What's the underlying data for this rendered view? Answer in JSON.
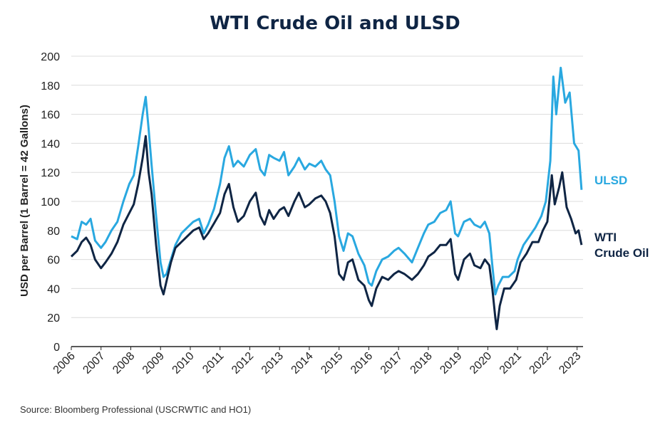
{
  "chart_data": {
    "type": "line",
    "title": "WTI Crude Oil and ULSD",
    "ylabel": "USD per Barrel (1 Barrel = 42 Gallons)",
    "xlabel": "",
    "ylim": [
      0,
      200
    ],
    "yticks": [
      0,
      20,
      40,
      60,
      80,
      100,
      120,
      140,
      160,
      180,
      200
    ],
    "xlim": [
      2006.0,
      2023.2
    ],
    "xticks": [
      "2006",
      "2007",
      "2008",
      "2009",
      "2010",
      "2011",
      "2012",
      "2013",
      "2014",
      "2015",
      "2016",
      "2017",
      "2018",
      "2019",
      "2020",
      "2021",
      "2022",
      "2023"
    ],
    "grid": "horizontal",
    "legend": "right",
    "series": [
      {
        "name": "ULSD",
        "color": "#29a8e0",
        "points": [
          [
            2006.0,
            76
          ],
          [
            2006.2,
            74
          ],
          [
            2006.35,
            86
          ],
          [
            2006.5,
            84
          ],
          [
            2006.65,
            88
          ],
          [
            2006.8,
            73
          ],
          [
            2007.0,
            68
          ],
          [
            2007.15,
            72
          ],
          [
            2007.35,
            80
          ],
          [
            2007.55,
            86
          ],
          [
            2007.75,
            100
          ],
          [
            2007.95,
            112
          ],
          [
            2008.1,
            118
          ],
          [
            2008.25,
            138
          ],
          [
            2008.4,
            160
          ],
          [
            2008.5,
            172
          ],
          [
            2008.6,
            150
          ],
          [
            2008.7,
            125
          ],
          [
            2008.85,
            90
          ],
          [
            2009.0,
            58
          ],
          [
            2009.1,
            48
          ],
          [
            2009.2,
            50
          ],
          [
            2009.35,
            60
          ],
          [
            2009.5,
            70
          ],
          [
            2009.7,
            78
          ],
          [
            2009.9,
            82
          ],
          [
            2010.1,
            86
          ],
          [
            2010.3,
            88
          ],
          [
            2010.45,
            78
          ],
          [
            2010.6,
            84
          ],
          [
            2010.8,
            95
          ],
          [
            2011.0,
            112
          ],
          [
            2011.15,
            130
          ],
          [
            2011.3,
            138
          ],
          [
            2011.45,
            124
          ],
          [
            2011.6,
            128
          ],
          [
            2011.8,
            124
          ],
          [
            2012.0,
            132
          ],
          [
            2012.2,
            136
          ],
          [
            2012.35,
            122
          ],
          [
            2012.5,
            118
          ],
          [
            2012.65,
            132
          ],
          [
            2012.8,
            130
          ],
          [
            2013.0,
            128
          ],
          [
            2013.15,
            134
          ],
          [
            2013.3,
            118
          ],
          [
            2013.5,
            124
          ],
          [
            2013.65,
            130
          ],
          [
            2013.85,
            122
          ],
          [
            2014.0,
            126
          ],
          [
            2014.2,
            124
          ],
          [
            2014.4,
            128
          ],
          [
            2014.55,
            122
          ],
          [
            2014.7,
            118
          ],
          [
            2014.85,
            100
          ],
          [
            2015.0,
            76
          ],
          [
            2015.15,
            66
          ],
          [
            2015.3,
            78
          ],
          [
            2015.45,
            76
          ],
          [
            2015.65,
            64
          ],
          [
            2015.85,
            56
          ],
          [
            2016.0,
            44
          ],
          [
            2016.1,
            42
          ],
          [
            2016.25,
            52
          ],
          [
            2016.45,
            60
          ],
          [
            2016.65,
            62
          ],
          [
            2016.85,
            66
          ],
          [
            2017.0,
            68
          ],
          [
            2017.2,
            64
          ],
          [
            2017.45,
            58
          ],
          [
            2017.65,
            68
          ],
          [
            2017.85,
            78
          ],
          [
            2018.0,
            84
          ],
          [
            2018.2,
            86
          ],
          [
            2018.4,
            92
          ],
          [
            2018.6,
            94
          ],
          [
            2018.75,
            100
          ],
          [
            2018.9,
            78
          ],
          [
            2019.0,
            76
          ],
          [
            2019.2,
            86
          ],
          [
            2019.4,
            88
          ],
          [
            2019.55,
            84
          ],
          [
            2019.75,
            82
          ],
          [
            2019.9,
            86
          ],
          [
            2020.05,
            78
          ],
          [
            2020.15,
            56
          ],
          [
            2020.25,
            36
          ],
          [
            2020.35,
            42
          ],
          [
            2020.5,
            48
          ],
          [
            2020.7,
            48
          ],
          [
            2020.9,
            52
          ],
          [
            2021.0,
            60
          ],
          [
            2021.2,
            70
          ],
          [
            2021.4,
            76
          ],
          [
            2021.6,
            82
          ],
          [
            2021.8,
            90
          ],
          [
            2021.95,
            100
          ],
          [
            2022.1,
            128
          ],
          [
            2022.2,
            186
          ],
          [
            2022.3,
            160
          ],
          [
            2022.45,
            192
          ],
          [
            2022.6,
            168
          ],
          [
            2022.75,
            175
          ],
          [
            2022.9,
            140
          ],
          [
            2023.05,
            135
          ],
          [
            2023.15,
            108
          ]
        ]
      },
      {
        "name": "WTI Crude Oil",
        "color": "#0f2544",
        "points": [
          [
            2006.0,
            62
          ],
          [
            2006.2,
            66
          ],
          [
            2006.35,
            72
          ],
          [
            2006.5,
            75
          ],
          [
            2006.65,
            70
          ],
          [
            2006.8,
            60
          ],
          [
            2007.0,
            54
          ],
          [
            2007.15,
            58
          ],
          [
            2007.35,
            64
          ],
          [
            2007.55,
            72
          ],
          [
            2007.75,
            84
          ],
          [
            2007.95,
            92
          ],
          [
            2008.1,
            98
          ],
          [
            2008.25,
            112
          ],
          [
            2008.4,
            130
          ],
          [
            2008.5,
            145
          ],
          [
            2008.6,
            120
          ],
          [
            2008.7,
            105
          ],
          [
            2008.85,
            70
          ],
          [
            2009.0,
            42
          ],
          [
            2009.1,
            36
          ],
          [
            2009.2,
            45
          ],
          [
            2009.35,
            58
          ],
          [
            2009.5,
            68
          ],
          [
            2009.7,
            72
          ],
          [
            2009.9,
            76
          ],
          [
            2010.1,
            80
          ],
          [
            2010.3,
            82
          ],
          [
            2010.45,
            74
          ],
          [
            2010.6,
            78
          ],
          [
            2010.8,
            85
          ],
          [
            2011.0,
            92
          ],
          [
            2011.15,
            105
          ],
          [
            2011.3,
            112
          ],
          [
            2011.45,
            96
          ],
          [
            2011.6,
            86
          ],
          [
            2011.8,
            90
          ],
          [
            2012.0,
            100
          ],
          [
            2012.2,
            106
          ],
          [
            2012.35,
            90
          ],
          [
            2012.5,
            84
          ],
          [
            2012.65,
            94
          ],
          [
            2012.8,
            88
          ],
          [
            2013.0,
            94
          ],
          [
            2013.15,
            96
          ],
          [
            2013.3,
            90
          ],
          [
            2013.5,
            100
          ],
          [
            2013.65,
            106
          ],
          [
            2013.85,
            96
          ],
          [
            2014.0,
            98
          ],
          [
            2014.2,
            102
          ],
          [
            2014.4,
            104
          ],
          [
            2014.55,
            100
          ],
          [
            2014.7,
            92
          ],
          [
            2014.85,
            76
          ],
          [
            2015.0,
            50
          ],
          [
            2015.15,
            46
          ],
          [
            2015.3,
            58
          ],
          [
            2015.45,
            60
          ],
          [
            2015.65,
            46
          ],
          [
            2015.85,
            42
          ],
          [
            2016.0,
            32
          ],
          [
            2016.1,
            28
          ],
          [
            2016.25,
            40
          ],
          [
            2016.45,
            48
          ],
          [
            2016.65,
            46
          ],
          [
            2016.85,
            50
          ],
          [
            2017.0,
            52
          ],
          [
            2017.2,
            50
          ],
          [
            2017.45,
            46
          ],
          [
            2017.65,
            50
          ],
          [
            2017.85,
            56
          ],
          [
            2018.0,
            62
          ],
          [
            2018.2,
            65
          ],
          [
            2018.4,
            70
          ],
          [
            2018.6,
            70
          ],
          [
            2018.75,
            74
          ],
          [
            2018.9,
            50
          ],
          [
            2019.0,
            46
          ],
          [
            2019.2,
            60
          ],
          [
            2019.4,
            64
          ],
          [
            2019.55,
            56
          ],
          [
            2019.75,
            54
          ],
          [
            2019.9,
            60
          ],
          [
            2020.05,
            56
          ],
          [
            2020.15,
            40
          ],
          [
            2020.25,
            20
          ],
          [
            2020.3,
            12
          ],
          [
            2020.4,
            28
          ],
          [
            2020.55,
            40
          ],
          [
            2020.75,
            40
          ],
          [
            2020.95,
            46
          ],
          [
            2021.1,
            58
          ],
          [
            2021.3,
            64
          ],
          [
            2021.5,
            72
          ],
          [
            2021.7,
            72
          ],
          [
            2021.85,
            80
          ],
          [
            2022.0,
            86
          ],
          [
            2022.15,
            118
          ],
          [
            2022.25,
            98
          ],
          [
            2022.4,
            110
          ],
          [
            2022.5,
            120
          ],
          [
            2022.65,
            96
          ],
          [
            2022.8,
            88
          ],
          [
            2022.95,
            78
          ],
          [
            2023.05,
            80
          ],
          [
            2023.15,
            70
          ]
        ]
      }
    ],
    "source": "Source: Bloomberg Professional (USCRWTIC and HO1)"
  }
}
